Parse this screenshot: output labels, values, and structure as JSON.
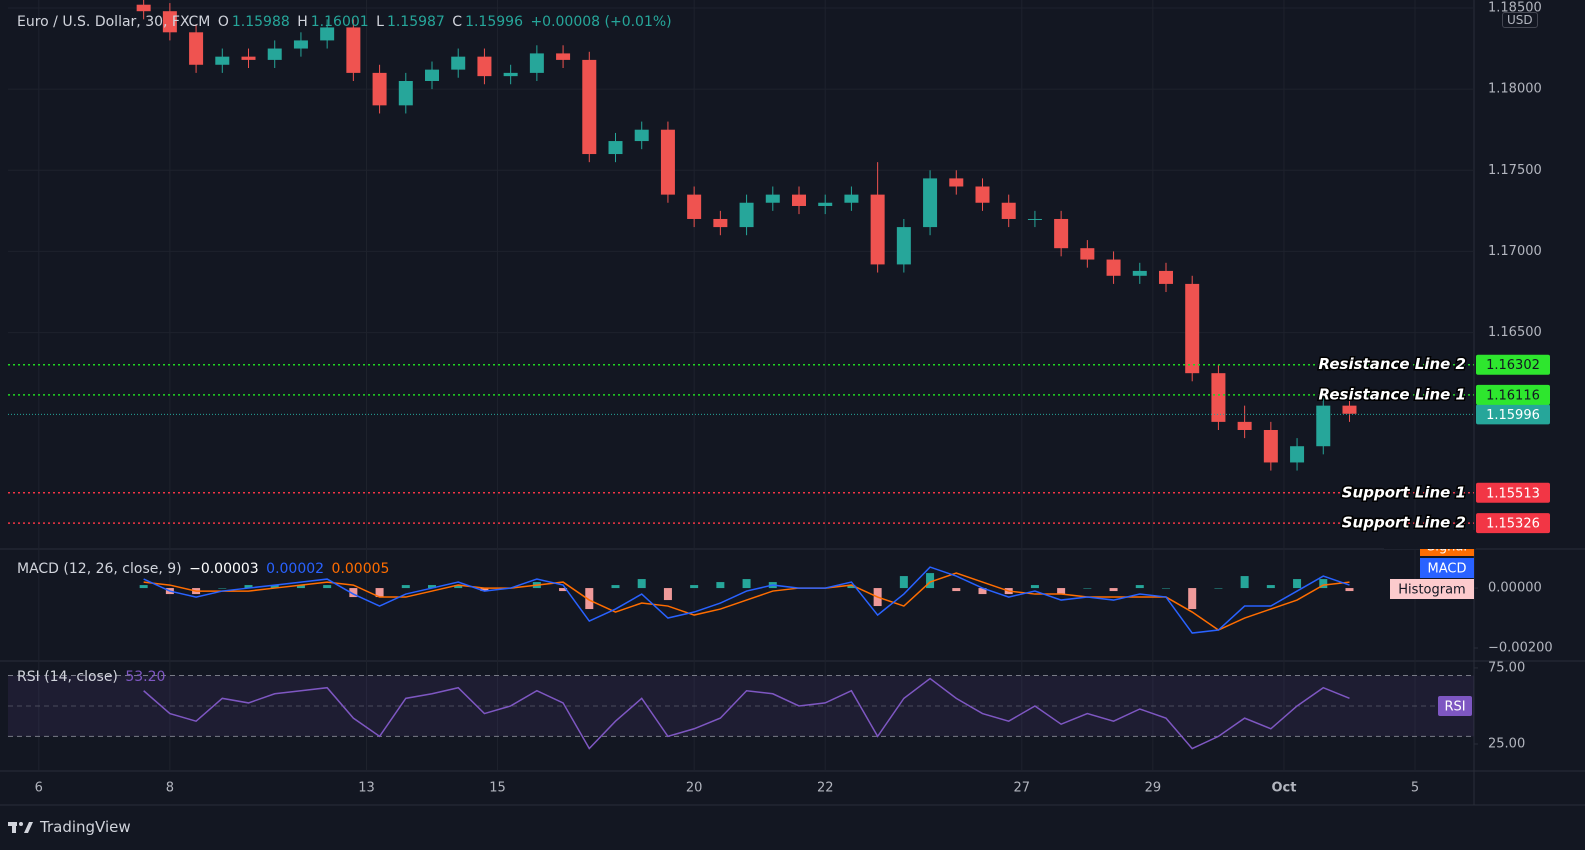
{
  "chart_data": [
    {
      "type": "candlestick",
      "title": "Euro / U.S. Dollar, 30, FXCM",
      "last_labels": [
        "O",
        "H",
        "L",
        "C"
      ],
      "last": {
        "open": 1.15988,
        "high": 1.16001,
        "low": 1.15987,
        "close": 1.15996
      },
      "change_label": "+0.00008 (+0.01%)",
      "currency": "USD",
      "up_color": "#26a69a",
      "down_color": "#ef5350",
      "last_color": "#26a69a",
      "x": [
        1.6,
        2.0,
        2.4,
        2.8,
        3.2,
        3.6,
        4.0,
        4.4,
        4.8,
        5.2,
        5.6,
        6.0,
        6.4,
        6.8,
        7.2,
        7.6,
        8.0,
        8.4,
        8.8,
        9.2,
        9.6,
        10.0,
        10.4,
        10.8,
        11.2,
        11.6,
        12.0,
        12.4,
        12.8,
        13.2,
        13.6,
        14.0,
        14.4,
        14.8,
        15.2,
        15.6,
        16.0,
        16.4,
        16.8,
        17.2,
        17.6,
        18.0,
        18.4,
        18.8,
        19.2,
        19.6,
        20.0
      ],
      "open": [
        1.1852,
        1.1848,
        1.1835,
        1.1815,
        1.182,
        1.1818,
        1.1825,
        1.183,
        1.1838,
        1.181,
        1.179,
        1.1805,
        1.1812,
        1.182,
        1.1808,
        1.181,
        1.1822,
        1.1818,
        1.176,
        1.1768,
        1.1775,
        1.1735,
        1.172,
        1.1715,
        1.173,
        1.1735,
        1.1728,
        1.173,
        1.1735,
        1.1692,
        1.1715,
        1.1745,
        1.174,
        1.173,
        1.172,
        1.172,
        1.1702,
        1.1695,
        1.1685,
        1.1688,
        1.168,
        1.1625,
        1.1595,
        1.159,
        1.157,
        1.158,
        1.1605
      ],
      "high": [
        1.1857,
        1.1853,
        1.184,
        1.1825,
        1.1825,
        1.183,
        1.1835,
        1.1843,
        1.1843,
        1.1815,
        1.181,
        1.1817,
        1.1825,
        1.1825,
        1.1815,
        1.1827,
        1.1827,
        1.1823,
        1.1773,
        1.178,
        1.178,
        1.174,
        1.1725,
        1.1735,
        1.174,
        1.174,
        1.1735,
        1.174,
        1.1755,
        1.172,
        1.175,
        1.175,
        1.1745,
        1.1735,
        1.1725,
        1.1725,
        1.1707,
        1.17,
        1.1693,
        1.1693,
        1.1685,
        1.163,
        1.1605,
        1.1595,
        1.1585,
        1.161,
        1.161
      ],
      "low": [
        1.1843,
        1.183,
        1.181,
        1.181,
        1.1813,
        1.1813,
        1.182,
        1.1825,
        1.1805,
        1.1785,
        1.1785,
        1.18,
        1.1807,
        1.1803,
        1.1803,
        1.1805,
        1.1813,
        1.1755,
        1.1755,
        1.1763,
        1.173,
        1.1715,
        1.171,
        1.171,
        1.1725,
        1.1723,
        1.1723,
        1.1725,
        1.1687,
        1.1687,
        1.171,
        1.1735,
        1.1725,
        1.1715,
        1.1715,
        1.1697,
        1.169,
        1.168,
        1.168,
        1.1675,
        1.162,
        1.159,
        1.1585,
        1.1565,
        1.1565,
        1.1575,
        1.1595
      ],
      "close": [
        1.1848,
        1.1835,
        1.1815,
        1.182,
        1.1818,
        1.1825,
        1.183,
        1.1838,
        1.181,
        1.179,
        1.1805,
        1.1812,
        1.182,
        1.1808,
        1.181,
        1.1822,
        1.1818,
        1.176,
        1.1768,
        1.1775,
        1.1735,
        1.172,
        1.1715,
        1.173,
        1.1735,
        1.1728,
        1.173,
        1.1735,
        1.1692,
        1.1715,
        1.1745,
        1.174,
        1.173,
        1.172,
        1.172,
        1.1702,
        1.1695,
        1.1685,
        1.1688,
        1.168,
        1.1625,
        1.1595,
        1.159,
        1.157,
        1.158,
        1.1605,
        1.16
      ],
      "levels": [
        {
          "name": "Resistance Line 2",
          "value": 1.16302,
          "color": "#22d822",
          "tag_color": "#2ee62e",
          "text_color": "#131722"
        },
        {
          "name": "Resistance Line 1",
          "value": 1.16116,
          "color": "#22d822",
          "tag_color": "#2ee62e",
          "text_color": "#131722"
        },
        {
          "name": "Support Line 1",
          "value": 1.15513,
          "color": "#f23645",
          "tag_color": "#f23645",
          "text_color": "#ffffff"
        },
        {
          "name": "Support Line 2",
          "value": 1.15326,
          "color": "#f23645",
          "tag_color": "#f23645",
          "text_color": "#ffffff"
        }
      ],
      "xlim": [
        -0.47,
        21.9
      ],
      "ylim": [
        1.15173,
        1.18549
      ],
      "yticks": [
        {
          "value": 1.185,
          "label": "1.18500"
        },
        {
          "value": 1.18,
          "label": "1.18000"
        },
        {
          "value": 1.175,
          "label": "1.17500"
        },
        {
          "value": 1.17,
          "label": "1.17000"
        },
        {
          "value": 1.165,
          "label": "1.16500"
        }
      ],
      "grid": true
    },
    {
      "type": "macd",
      "title": "MACD (12, 26, close, 9)",
      "readout": [
        {
          "value": -3e-05,
          "label": "−0.00003",
          "color": "#ffffff"
        },
        {
          "value": 2e-05,
          "label": "0.00002",
          "color": "#2962ff"
        },
        {
          "value": 5e-05,
          "label": "0.00005",
          "color": "#ff6d00"
        }
      ],
      "x": [
        1.6,
        2.0,
        2.4,
        2.8,
        3.2,
        3.6,
        4.0,
        4.4,
        4.8,
        5.2,
        5.6,
        6.0,
        6.4,
        6.8,
        7.2,
        7.6,
        8.0,
        8.4,
        8.8,
        9.2,
        9.6,
        10.0,
        10.4,
        10.8,
        11.2,
        11.6,
        12.0,
        12.4,
        12.8,
        13.2,
        13.6,
        14.0,
        14.4,
        14.8,
        15.2,
        15.6,
        16.0,
        16.4,
        16.8,
        17.2,
        17.6,
        18.0,
        18.4,
        18.8,
        19.2,
        19.6,
        20.0
      ],
      "series": [
        {
          "name": "Signal",
          "kind": "line",
          "color": "#ff6d00",
          "values": [
            0.0002,
            0.0001,
            -0.0001,
            -0.0001,
            -0.0001,
            0.0,
            0.0001,
            0.0002,
            0.0001,
            -0.0003,
            -0.0003,
            -0.0001,
            0.0001,
            0.0,
            0.0,
            0.0001,
            0.0002,
            -0.0004,
            -0.0008,
            -0.0005,
            -0.0006,
            -0.0009,
            -0.0007,
            -0.0004,
            -0.0001,
            0.0,
            0.0,
            0.0001,
            -0.0003,
            -0.0006,
            0.0002,
            0.0005,
            0.0002,
            -0.0001,
            -0.0002,
            -0.0002,
            -0.0003,
            -0.0003,
            -0.0003,
            -0.0003,
            -0.0008,
            -0.0014,
            -0.001,
            -0.0007,
            -0.0004,
            0.0001,
            0.0002
          ]
        },
        {
          "name": "MACD",
          "kind": "line",
          "color": "#2962ff",
          "values": [
            0.0003,
            -0.0001,
            -0.0003,
            -0.0001,
            0.0,
            0.0001,
            0.0002,
            0.0003,
            -0.0002,
            -0.0006,
            -0.0002,
            0.0,
            0.0002,
            -0.0001,
            0.0,
            0.0003,
            0.0001,
            -0.0011,
            -0.0007,
            -0.0002,
            -0.001,
            -0.0008,
            -0.0005,
            -0.0001,
            0.0001,
            0.0,
            0.0,
            0.0002,
            -0.0009,
            -0.0002,
            0.0007,
            0.0004,
            0.0,
            -0.0003,
            -0.0001,
            -0.0004,
            -0.0003,
            -0.0004,
            -0.0002,
            -0.0003,
            -0.0015,
            -0.0014,
            -0.0006,
            -0.0006,
            -0.0001,
            0.0004,
            0.0001
          ]
        },
        {
          "name": "Histogram",
          "kind": "histogram",
          "color": "#fccbcd",
          "up_color": "#26a69a",
          "down_color": "#ef9a9a",
          "values": [
            0.0001,
            -0.0002,
            -0.0002,
            0,
            0.0001,
            0.0001,
            0.0001,
            0.0001,
            -0.0003,
            -0.0003,
            0.0001,
            0.0001,
            0.0001,
            -0.0001,
            0,
            0.0002,
            -0.0001,
            -0.0007,
            0.0001,
            0.0003,
            -0.0004,
            0.0001,
            0.0002,
            0.0003,
            0.0002,
            0,
            0,
            0.0001,
            -0.0006,
            0.0004,
            0.0005,
            -0.0001,
            -0.0002,
            -0.0002,
            0.0001,
            -0.0002,
            0,
            -0.0001,
            0.0001,
            0,
            -0.0007,
            0,
            0.0004,
            0.0001,
            0.0003,
            0.0003,
            -0.0001
          ]
        }
      ],
      "xlim": [
        -0.47,
        21.9
      ],
      "ylim": [
        -0.0024,
        0.00127
      ],
      "yticks": [
        {
          "value": 0,
          "label": "0.00000"
        },
        {
          "value": -0.002,
          "label": "−0.00200"
        }
      ]
    },
    {
      "type": "rsi",
      "title": "RSI (14, close)",
      "readout": {
        "value": 53.2,
        "label": "53.20"
      },
      "series": [
        {
          "name": "RSI",
          "color": "#7e57c2",
          "values": [
            60,
            45,
            40,
            55,
            52,
            58,
            60,
            62,
            42,
            30,
            55,
            58,
            62,
            45,
            50,
            60,
            52,
            22,
            40,
            55,
            30,
            35,
            42,
            60,
            58,
            50,
            52,
            60,
            30,
            55,
            68,
            55,
            45,
            40,
            50,
            38,
            45,
            40,
            48,
            42,
            22,
            30,
            42,
            35,
            50,
            62,
            55
          ]
        }
      ],
      "bands": [
        70,
        50,
        30
      ],
      "x": [
        1.6,
        2.0,
        2.4,
        2.8,
        3.2,
        3.6,
        4.0,
        4.4,
        4.8,
        5.2,
        5.6,
        6.0,
        6.4,
        6.8,
        7.2,
        7.6,
        8.0,
        8.4,
        8.8,
        9.2,
        9.6,
        10.0,
        10.4,
        10.8,
        11.2,
        11.6,
        12.0,
        12.4,
        12.8,
        13.2,
        13.6,
        14.0,
        14.4,
        14.8,
        15.2,
        15.6,
        16.0,
        16.4,
        16.8,
        17.2,
        17.6,
        18.0,
        18.4,
        18.8,
        19.2,
        19.6,
        20.0
      ],
      "xlim": [
        -0.47,
        21.9
      ],
      "ylim": [
        7.9,
        78.9
      ],
      "yticks": [
        {
          "value": 75,
          "label": "75.00"
        },
        {
          "value": 25,
          "label": "25.00"
        }
      ],
      "xticks": [
        {
          "value": 0,
          "label": "6"
        },
        {
          "value": 2,
          "label": "8"
        },
        {
          "value": 5,
          "label": "13"
        },
        {
          "value": 7,
          "label": "15"
        },
        {
          "value": 10,
          "label": "20"
        },
        {
          "value": 12,
          "label": "22"
        },
        {
          "value": 15,
          "label": "27"
        },
        {
          "value": 17,
          "label": "29"
        },
        {
          "value": 19,
          "label": "Oct"
        },
        {
          "value": 21,
          "label": "5"
        }
      ]
    }
  ],
  "footer": {
    "brand": "TradingView"
  }
}
